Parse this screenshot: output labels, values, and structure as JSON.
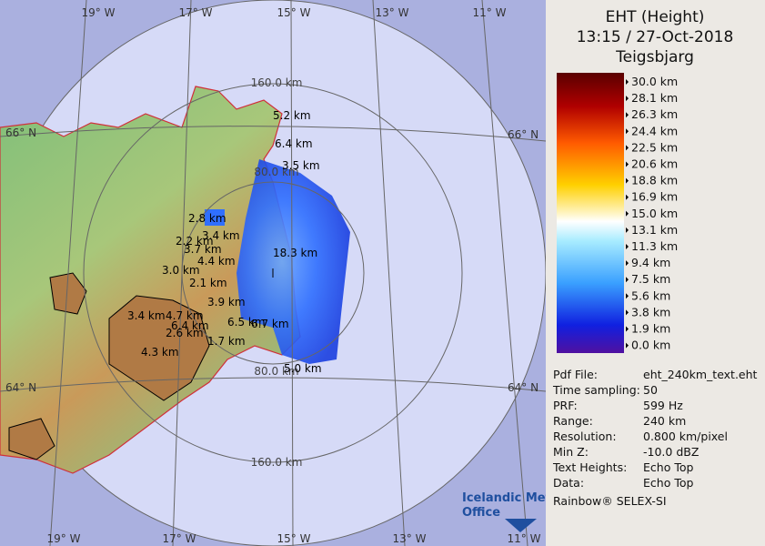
{
  "header": {
    "title": "EHT (Height)",
    "time": "13:15 / 27-Oct-2018",
    "station": "Teigsbjarg"
  },
  "legend": {
    "labels": [
      "30.0 km",
      "28.1 km",
      "26.3 km",
      "24.4 km",
      "22.5 km",
      "20.6 km",
      "18.8 km",
      "16.9 km",
      "15.0 km",
      "13.1 km",
      "11.3 km",
      "9.4 km",
      "7.5 km",
      "5.6 km",
      "3.8 km",
      "1.9 km",
      "0.0 km"
    ]
  },
  "info": {
    "rows": [
      [
        "Pdf File:",
        "eht_240km_text.eht"
      ],
      [
        "Time sampling:",
        "50"
      ],
      [
        "PRF:",
        "599 Hz"
      ],
      [
        "Range:",
        "240 km"
      ],
      [
        "Resolution:",
        "0.800 km/pixel"
      ],
      [
        "Min Z:",
        "-10.0 dBZ"
      ],
      [
        "Text Heights:",
        "Echo Top"
      ],
      [
        "Data:",
        "Echo Top"
      ]
    ],
    "footer": "Rainbow® SELEX-SI"
  },
  "map": {
    "lon_labels": [
      "19° W",
      "17° W",
      "15° W",
      "13° W",
      "11° W"
    ],
    "lat_labels": [
      "66° N",
      "64° N"
    ],
    "ring_labels": [
      "160.0 km",
      "80.0 km"
    ],
    "echo_labels": [
      "5.2 km",
      "6.4 km",
      "3.5 km",
      "2.8 km",
      "3.4 km",
      "2.2 km",
      "3.7 km",
      "4.4 km",
      "18.3 km",
      "3.0 km",
      "2.1 km",
      "3.9 km",
      "3.4 km",
      "4.7 km",
      "6.4 km",
      "2.6 km",
      "6.5 km",
      "6.7 km",
      "1.7 km",
      "4.3 km",
      "5.0 km"
    ],
    "logo": [
      "Icelandic Met",
      "Office"
    ]
  }
}
